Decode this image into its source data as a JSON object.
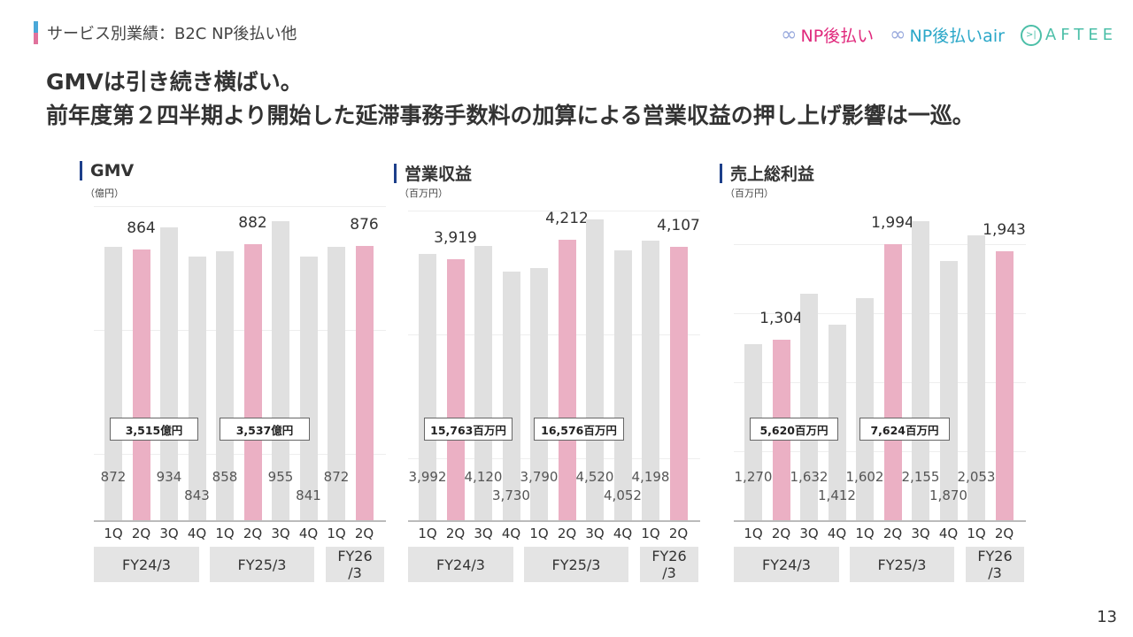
{
  "header": {
    "breadcrumb": "サービス別業績：B2C NP後払い他",
    "logos": [
      "NP後払い",
      "NP後払いair",
      "AFTEE"
    ],
    "colors": {
      "np": "#e0287c",
      "air": "#2aa7c8",
      "aftee": "#4cbfa8"
    }
  },
  "headline": [
    "GMVは引き続き横ばい。",
    "前年度第２四半期より開始した延滞事務手数料の加算による営業収益の押し上げ影響は一巡。"
  ],
  "page_number": "13",
  "colors": {
    "highlight": "#ebb0c4",
    "base": "#e0e0e0"
  },
  "quarters": [
    "1Q",
    "2Q",
    "3Q",
    "4Q",
    "1Q",
    "2Q",
    "3Q",
    "4Q",
    "1Q",
    "2Q"
  ],
  "fiscal_years": [
    "FY24/3",
    "FY25/3",
    "FY26\n/3"
  ],
  "chart_data": [
    {
      "type": "bar",
      "title": "GMV",
      "unit": "（億円）",
      "ylim": [
        0,
        1000
      ],
      "values": [
        872,
        864,
        934,
        843,
        858,
        882,
        955,
        841,
        872,
        876
      ],
      "labels": [
        "872",
        "864",
        "934",
        "843",
        "858",
        "882",
        "955",
        "841",
        "872",
        "876"
      ],
      "highlight": [
        false,
        true,
        false,
        false,
        false,
        true,
        false,
        false,
        false,
        true
      ],
      "totals": [
        "3,515億円",
        "3,537億円"
      ]
    },
    {
      "type": "bar",
      "title": "営業収益",
      "unit": "（百万円）",
      "ylim": [
        0,
        4700
      ],
      "values": [
        3992,
        3919,
        4120,
        3730,
        3790,
        4212,
        4520,
        4052,
        4198,
        4107
      ],
      "labels": [
        "3,992",
        "3,919",
        "4,120",
        "3,730",
        "3,790",
        "4,212",
        "4,520",
        "4,052",
        "4,198",
        "4,107"
      ],
      "highlight": [
        false,
        true,
        false,
        false,
        false,
        true,
        false,
        false,
        false,
        true
      ],
      "totals": [
        "15,763百万円",
        "16,576百万円"
      ]
    },
    {
      "type": "bar",
      "title": "売上総利益",
      "unit": "（百万円）",
      "ylim": [
        0,
        2260
      ],
      "values": [
        1270,
        1304,
        1632,
        1412,
        1602,
        1994,
        2155,
        1870,
        2053,
        1943
      ],
      "labels": [
        "1,270",
        "1,304",
        "1,632",
        "1,412",
        "1,602",
        "1,994",
        "2,155",
        "1,870",
        "2,053",
        "1,943"
      ],
      "highlight": [
        false,
        true,
        false,
        false,
        false,
        true,
        false,
        false,
        false,
        true
      ],
      "totals": [
        "5,620百万円",
        "7,624百万円"
      ]
    }
  ]
}
